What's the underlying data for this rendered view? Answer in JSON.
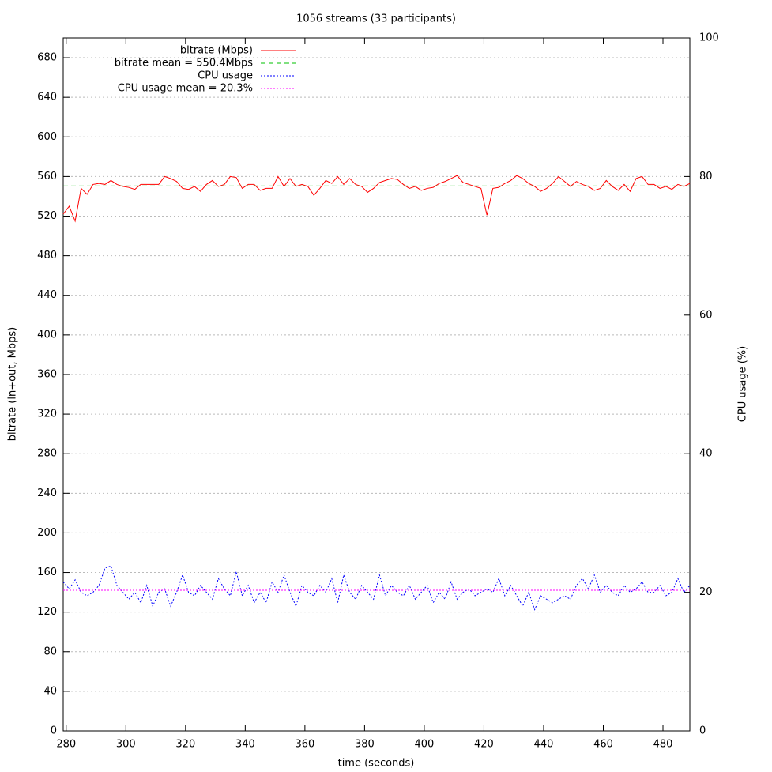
{
  "chart_data": {
    "type": "line",
    "title": "1056 streams (33 participants)",
    "xlabel": "time (seconds)",
    "ylabel": "bitrate (in+out, Mbps)",
    "y2label": "CPU usage (%)",
    "xlim": [
      279,
      489
    ],
    "xticks": [
      280,
      300,
      320,
      340,
      360,
      380,
      400,
      420,
      440,
      460,
      480
    ],
    "ylim": [
      0,
      700
    ],
    "yticks": [
      0,
      40,
      80,
      120,
      160,
      200,
      240,
      280,
      320,
      360,
      400,
      440,
      480,
      520,
      560,
      600,
      640,
      680
    ],
    "y2lim": [
      0,
      100
    ],
    "y2ticks": [
      0,
      20,
      40,
      60,
      80,
      100
    ],
    "grid": true,
    "legend": "upper-left",
    "series": [
      {
        "name": "bitrate (Mbps)",
        "color": "#ff0000",
        "dash": "solid",
        "x": [
          279,
          281,
          283,
          285,
          287,
          289,
          291,
          293,
          295,
          297,
          299,
          301,
          303,
          305,
          307,
          309,
          311,
          313,
          315,
          317,
          319,
          321,
          323,
          325,
          327,
          329,
          331,
          333,
          335,
          337,
          339,
          341,
          343,
          345,
          347,
          349,
          351,
          353,
          355,
          357,
          359,
          361,
          363,
          365,
          367,
          369,
          371,
          373,
          375,
          377,
          379,
          381,
          383,
          385,
          387,
          389,
          391,
          393,
          395,
          397,
          399,
          401,
          403,
          405,
          407,
          409,
          411,
          413,
          415,
          417,
          419,
          421,
          423,
          425,
          427,
          429,
          431,
          433,
          435,
          437,
          439,
          441,
          443,
          445,
          447,
          449,
          451,
          453,
          455,
          457,
          459,
          461,
          463,
          465,
          467,
          469,
          471,
          473,
          475,
          477,
          479,
          481,
          483,
          485,
          487,
          489
        ],
        "values": [
          522,
          530,
          515,
          548,
          542,
          552,
          553,
          552,
          556,
          552,
          550,
          549,
          547,
          552,
          552,
          552,
          552,
          560,
          558,
          555,
          548,
          547,
          550,
          545,
          552,
          556,
          550,
          552,
          560,
          559,
          548,
          552,
          552,
          546,
          548,
          548,
          560,
          550,
          558,
          550,
          552,
          550,
          541,
          548,
          556,
          553,
          560,
          552,
          558,
          552,
          550,
          544,
          548,
          554,
          556,
          558,
          557,
          552,
          548,
          550,
          546,
          548,
          549,
          553,
          555,
          558,
          561,
          554,
          552,
          550,
          548,
          521,
          548,
          549,
          553,
          556,
          561,
          558,
          553,
          550,
          545,
          548,
          553,
          560,
          555,
          550,
          555,
          552,
          550,
          546,
          548,
          556,
          550,
          546,
          552,
          545,
          558,
          560,
          552,
          552,
          548,
          550,
          547,
          552,
          550,
          553
        ]
      },
      {
        "name": "bitrate mean = 550.4Mbps",
        "color": "#00c000",
        "dash": "dashed",
        "x": [
          279,
          489
        ],
        "values": [
          550.4,
          550.4
        ]
      },
      {
        "name": "CPU usage",
        "color": "#0000ff",
        "dash": "dotted",
        "axis": "y2",
        "x": [
          279,
          281,
          283,
          285,
          287,
          289,
          291,
          293,
          295,
          297,
          299,
          301,
          303,
          305,
          307,
          309,
          311,
          313,
          315,
          317,
          319,
          321,
          323,
          325,
          327,
          329,
          331,
          333,
          335,
          337,
          339,
          341,
          343,
          345,
          347,
          349,
          351,
          353,
          355,
          357,
          359,
          361,
          363,
          365,
          367,
          369,
          371,
          373,
          375,
          377,
          379,
          381,
          383,
          385,
          387,
          389,
          391,
          393,
          395,
          397,
          399,
          401,
          403,
          405,
          407,
          409,
          411,
          413,
          415,
          417,
          419,
          421,
          423,
          425,
          427,
          429,
          431,
          433,
          435,
          437,
          439,
          441,
          443,
          445,
          447,
          449,
          451,
          453,
          455,
          457,
          459,
          461,
          463,
          465,
          467,
          469,
          471,
          473,
          475,
          477,
          479,
          481,
          483,
          485,
          487,
          489
        ],
        "values": [
          21.5,
          20.5,
          21.8,
          20,
          19.5,
          20,
          21,
          23.5,
          23.8,
          21,
          20,
          19,
          20,
          18.5,
          21,
          18,
          20,
          20.5,
          18,
          20,
          22.5,
          20,
          19.5,
          21,
          20,
          19,
          22,
          20.5,
          19.5,
          23,
          19.5,
          21,
          18.5,
          20,
          18.5,
          21.5,
          20,
          22.5,
          20,
          18,
          21,
          20,
          19.5,
          21,
          20,
          22,
          18.5,
          22.5,
          20,
          19,
          21,
          20,
          19,
          22.5,
          19.5,
          21,
          20,
          19.5,
          21,
          19,
          20,
          21,
          18.5,
          20,
          19,
          21.5,
          19,
          20,
          20.5,
          19.5,
          20,
          20.5,
          20,
          22,
          19.5,
          21,
          19.5,
          18,
          20,
          17.5,
          19.5,
          19,
          18.5,
          19,
          19.5,
          19,
          21,
          22,
          20.5,
          22.5,
          20,
          21,
          20,
          19.5,
          21,
          20,
          20.5,
          21.5,
          20,
          20,
          21,
          19.5,
          20,
          22,
          20,
          21
        ]
      },
      {
        "name": "CPU usage mean = 20.3%",
        "color": "#ff00ff",
        "dash": "dotted",
        "axis": "y2",
        "x": [
          279,
          489
        ],
        "values": [
          20.3,
          20.3
        ]
      }
    ]
  }
}
